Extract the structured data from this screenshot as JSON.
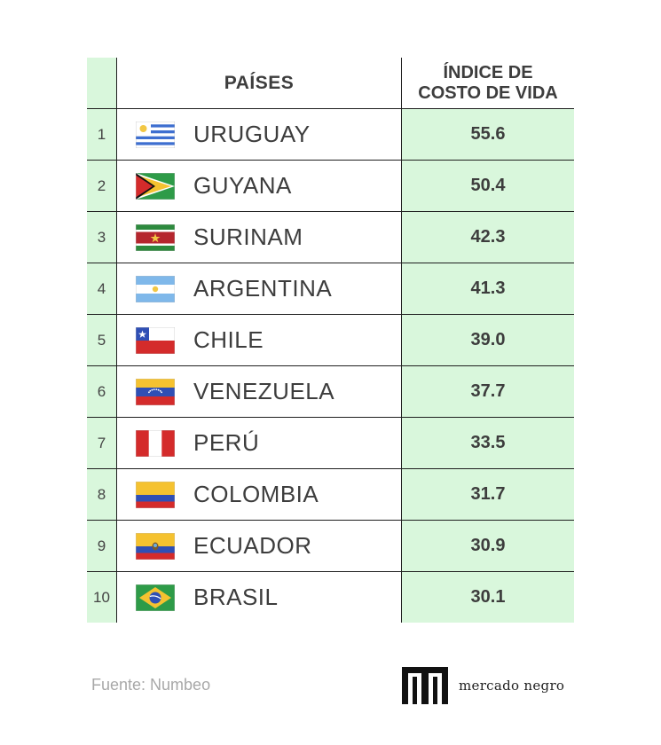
{
  "chart_data": {
    "type": "table",
    "columns": [
      "PAÍSES",
      "ÍNDICE DE COSTO DE VIDA"
    ],
    "header": {
      "countries": "PAÍSES",
      "index_line1": "ÍNDICE DE",
      "index_line2": "COSTO DE VIDA"
    },
    "rows": [
      {
        "rank": "1",
        "country": "URUGUAY",
        "value": "55.6",
        "flag": "uruguay-flag-icon"
      },
      {
        "rank": "2",
        "country": "GUYANA",
        "value": "50.4",
        "flag": "guyana-flag-icon"
      },
      {
        "rank": "3",
        "country": "SURINAM",
        "value": "42.3",
        "flag": "suriname-flag-icon"
      },
      {
        "rank": "4",
        "country": "ARGENTINA",
        "value": "41.3",
        "flag": "argentina-flag-icon"
      },
      {
        "rank": "5",
        "country": "CHILE",
        "value": "39.0",
        "flag": "chile-flag-icon"
      },
      {
        "rank": "6",
        "country": "VENEZUELA",
        "value": "37.7",
        "flag": "venezuela-flag-icon"
      },
      {
        "rank": "7",
        "country": "PERÚ",
        "value": "33.5",
        "flag": "peru-flag-icon"
      },
      {
        "rank": "8",
        "country": "COLOMBIA",
        "value": "31.7",
        "flag": "colombia-flag-icon"
      },
      {
        "rank": "9",
        "country": "ECUADOR",
        "value": "30.9",
        "flag": "ecuador-flag-icon"
      },
      {
        "rank": "10",
        "country": "BRASIL",
        "value": "30.1",
        "flag": "brazil-flag-icon"
      }
    ]
  },
  "footer": {
    "source": "Fuente: Numbeo",
    "brand": "mercado negro"
  },
  "colors": {
    "highlight": "#d9f7dc",
    "text": "#3d3d3d",
    "source_text": "#a8a8a8"
  }
}
